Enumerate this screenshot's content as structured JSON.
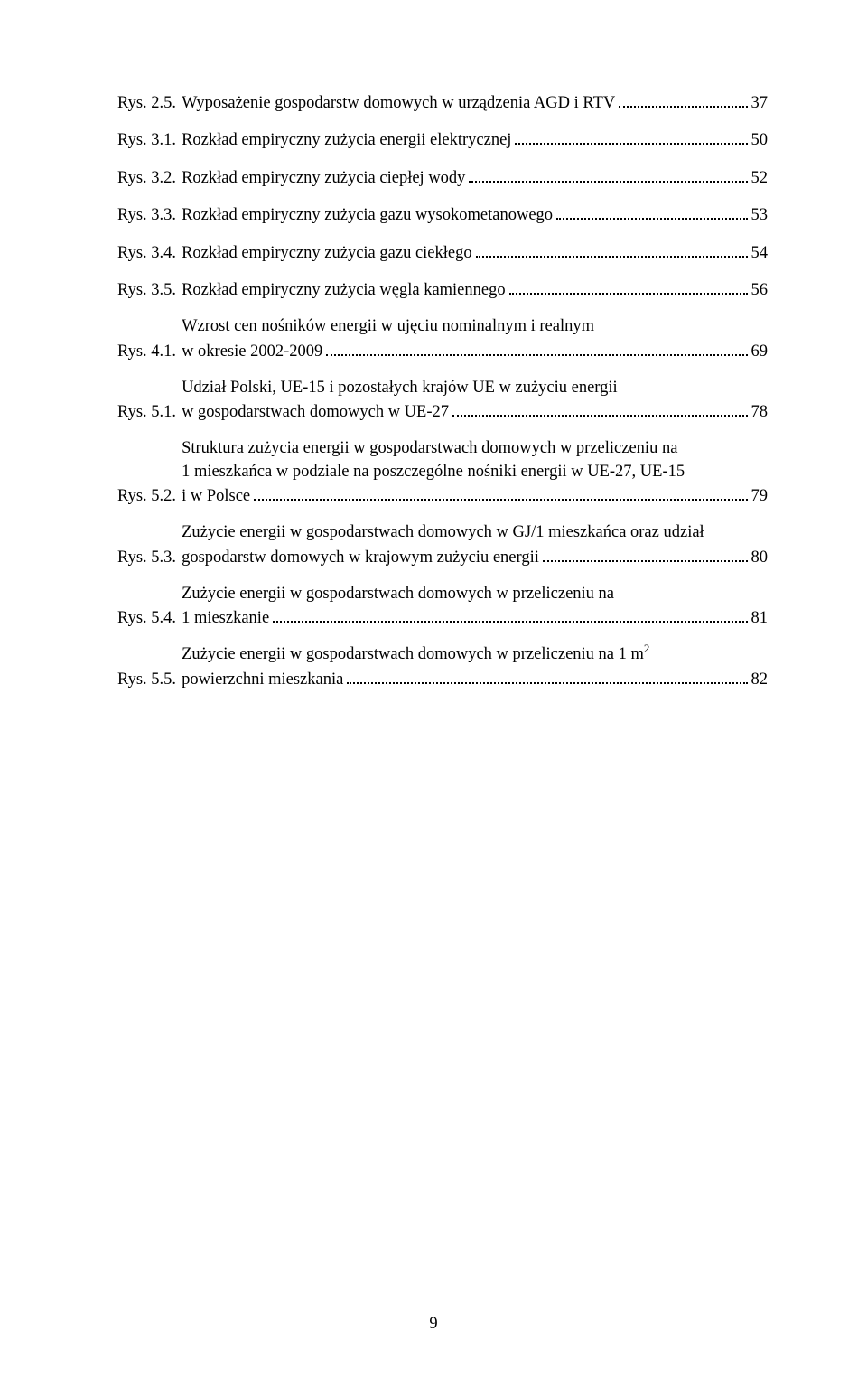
{
  "entries": [
    {
      "label": "Rys. 2.5.",
      "lines": [
        "Wyposażenie gospodarstw domowych w urządzenia AGD i RTV"
      ],
      "page": "37"
    },
    {
      "label": "Rys. 3.1.",
      "lines": [
        "Rozkład empiryczny zużycia energii elektrycznej"
      ],
      "page": "50"
    },
    {
      "label": "Rys. 3.2.",
      "lines": [
        "Rozkład empiryczny zużycia ciepłej wody"
      ],
      "page": "52"
    },
    {
      "label": "Rys. 3.3.",
      "lines": [
        "Rozkład empiryczny zużycia gazu wysokometanowego"
      ],
      "page": "53"
    },
    {
      "label": "Rys. 3.4.",
      "lines": [
        "Rozkład empiryczny zużycia gazu ciekłego"
      ],
      "page": "54"
    },
    {
      "label": "Rys. 3.5.",
      "lines": [
        "Rozkład empiryczny zużycia węgla kamiennego"
      ],
      "page": "56"
    },
    {
      "label": "Rys. 4.1.",
      "lines": [
        "Wzrost cen nośników energii w ujęciu nominalnym i realnym",
        "w okresie 2002-2009"
      ],
      "page": "69"
    },
    {
      "label": "Rys. 5.1.",
      "lines": [
        "Udział Polski, UE-15 i pozostałych krajów UE w zużyciu energii",
        "w gospodarstwach domowych w UE-27"
      ],
      "page": "78"
    },
    {
      "label": "Rys. 5.2.",
      "lines": [
        "Struktura zużycia energii w gospodarstwach domowych w przeliczeniu  na",
        "1 mieszkańca w podziale na poszczególne nośniki energii w UE-27, UE-15",
        "i w Polsce"
      ],
      "page": "79"
    },
    {
      "label": "Rys. 5.3.",
      "lines": [
        "Zużycie energii w gospodarstwach domowych w GJ/1 mieszkańca oraz udział",
        "gospodarstw domowych w krajowym zużyciu energii"
      ],
      "page": "80"
    },
    {
      "label": "Rys. 5.4.",
      "lines": [
        "Zużycie energii w gospodarstwach domowych w przeliczeniu na",
        "1 mieszkanie"
      ],
      "page": "81"
    },
    {
      "label": "Rys. 5.5.",
      "lines": [
        "Zużycie energii w gospodarstwach domowych w przeliczeniu na 1 m<sup>2</sup>",
        "powierzchni mieszkania"
      ],
      "page": "82"
    }
  ],
  "page_number": "9"
}
